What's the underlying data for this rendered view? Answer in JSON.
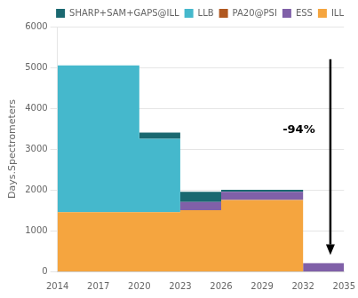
{
  "chart_data": {
    "type": "area",
    "stacked": true,
    "line_style": "steps",
    "x": [
      2014,
      2017,
      2020,
      2023,
      2026,
      2029,
      2032,
      2035
    ],
    "series": [
      {
        "name": "ILL",
        "color": "#f5a53f",
        "values": [
          1450,
          1450,
          1450,
          1500,
          1750,
          1750,
          0,
          0
        ]
      },
      {
        "name": "ESS",
        "color": "#8060a8",
        "values": [
          0,
          0,
          0,
          200,
          200,
          200,
          200,
          200
        ]
      },
      {
        "name": "PA20@PSI",
        "color": "#b05820",
        "values": [
          0,
          0,
          0,
          0,
          0,
          0,
          0,
          0
        ]
      },
      {
        "name": "LLB",
        "color": "#45b8cc",
        "values": [
          3600,
          3600,
          1800,
          0,
          0,
          0,
          0,
          0
        ]
      },
      {
        "name": "SHARP+SAM+GAPS@ILL",
        "color": "#1a6870",
        "values": [
          0,
          0,
          150,
          250,
          50,
          50,
          0,
          0
        ]
      }
    ],
    "ylabel": "Days.Spectrometers",
    "xlim": [
      2014,
      2035
    ],
    "xticks": [
      2014,
      2017,
      2020,
      2023,
      2026,
      2029,
      2032,
      2035
    ],
    "ylim": [
      0,
      6000
    ],
    "yticks": [
      0,
      1000,
      2000,
      3000,
      4000,
      5000,
      6000
    ],
    "grid": true,
    "legend": "upper right",
    "annotations": [
      {
        "text": "-94%",
        "x": 2030.5,
        "y": 3400
      }
    ],
    "arrows": [
      {
        "x": [
          2034,
          2034
        ],
        "y": [
          5200,
          400
        ]
      }
    ]
  }
}
